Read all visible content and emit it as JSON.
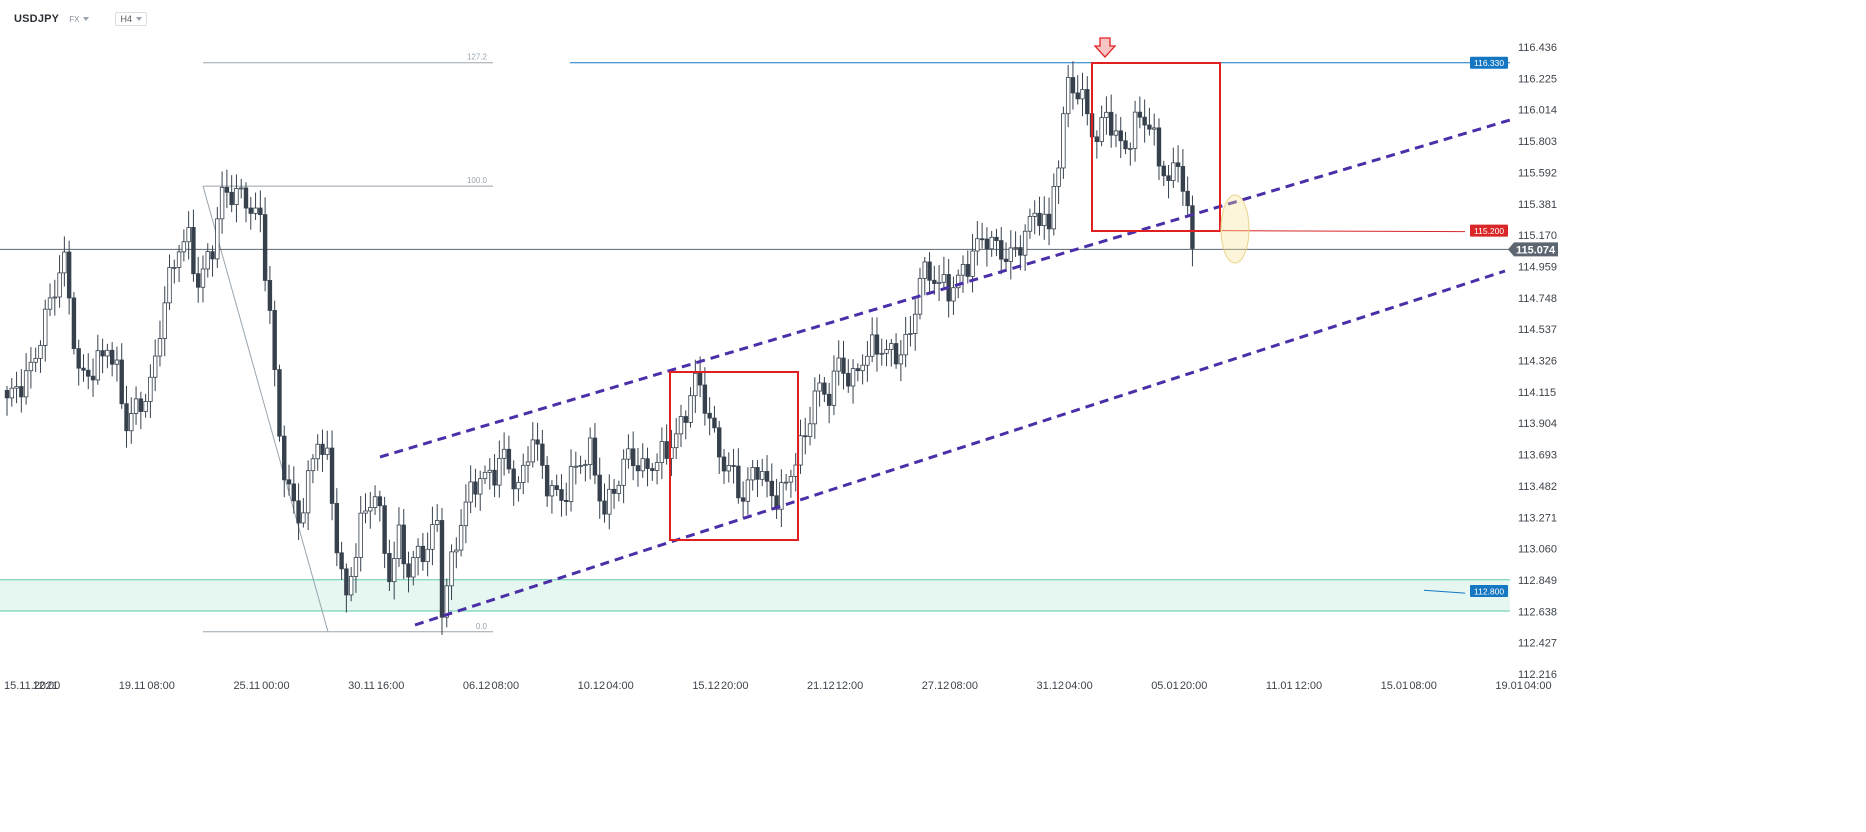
{
  "header": {
    "symbol": "USDJPY",
    "market": "FX",
    "timeframe": "H4"
  },
  "colors": {
    "up": "#ffffff",
    "down": "#36414d",
    "channel": "#4b2fa8",
    "box": "#e02020",
    "resistance": "#1576c2",
    "support_zone": "#e6f7f2",
    "support_line": "#5cc9a7",
    "level_red": "#d92727",
    "current": "#5d6670",
    "fib": "#9aa5ae"
  },
  "chart_data": {
    "type": "candlestick",
    "instrument": "USDJPY",
    "timeframe": "H4",
    "y_ticks": [
      116.436,
      116.225,
      116.014,
      115.803,
      115.592,
      115.381,
      115.17,
      114.959,
      114.748,
      114.537,
      114.326,
      114.115,
      113.904,
      113.693,
      113.482,
      113.271,
      113.06,
      112.849,
      112.638,
      112.427,
      112.216
    ],
    "y_tick_labels": [
      "116.436",
      "116.225",
      "116.014",
      "115.803",
      "115.592",
      "115.381",
      "115.170",
      "114.959",
      "114.748",
      "114.537",
      "114.326",
      "114.115",
      "113.904",
      "113.693",
      "113.482",
      "113.271",
      "113.060",
      "112.849",
      "112.638",
      "112.427",
      "112.216"
    ],
    "x_ticks": [
      {
        "slot": 0,
        "label": "15.11.2021"
      },
      {
        "slot": 6,
        "label": "12:00"
      },
      {
        "slot": 24,
        "label": "19.11"
      },
      {
        "slot": 30,
        "label": "08:00"
      },
      {
        "slot": 48,
        "label": "25.11"
      },
      {
        "slot": 54,
        "label": "00:00"
      },
      {
        "slot": 72,
        "label": "30.11"
      },
      {
        "slot": 78,
        "label": "16:00"
      },
      {
        "slot": 96,
        "label": "06.12"
      },
      {
        "slot": 102,
        "label": "08:00"
      },
      {
        "slot": 120,
        "label": "10.12"
      },
      {
        "slot": 126,
        "label": "04:00"
      },
      {
        "slot": 144,
        "label": "15.12"
      },
      {
        "slot": 150,
        "label": "20:00"
      },
      {
        "slot": 168,
        "label": "21.12"
      },
      {
        "slot": 174,
        "label": "12:00"
      },
      {
        "slot": 192,
        "label": "27.12"
      },
      {
        "slot": 198,
        "label": "08:00"
      },
      {
        "slot": 216,
        "label": "31.12"
      },
      {
        "slot": 222,
        "label": "04:00"
      },
      {
        "slot": 240,
        "label": "05.01"
      },
      {
        "slot": 246,
        "label": "20:00"
      },
      {
        "slot": 264,
        "label": "11.01"
      },
      {
        "slot": 270,
        "label": "12:00"
      },
      {
        "slot": 288,
        "label": "15.01"
      },
      {
        "slot": 294,
        "label": "08:00"
      },
      {
        "slot": 312,
        "label": "19.01"
      },
      {
        "slot": 318,
        "label": "04:00"
      }
    ],
    "key_points": [
      [
        0,
        114.0
      ],
      [
        4,
        114.2
      ],
      [
        9,
        114.75
      ],
      [
        12,
        114.95
      ],
      [
        15,
        114.2
      ],
      [
        19,
        114.35
      ],
      [
        21,
        114.45
      ],
      [
        23,
        114.2
      ],
      [
        25,
        113.85
      ],
      [
        28,
        114.05
      ],
      [
        30,
        114.2
      ],
      [
        33,
        114.75
      ],
      [
        36,
        115.05
      ],
      [
        38,
        115.1
      ],
      [
        40,
        114.85
      ],
      [
        43,
        115.15
      ],
      [
        45,
        115.45
      ],
      [
        48,
        115.4
      ],
      [
        51,
        115.35
      ],
      [
        53,
        115.3
      ],
      [
        55,
        114.7
      ],
      [
        57,
        113.8
      ],
      [
        59,
        113.4
      ],
      [
        61,
        113.2
      ],
      [
        63,
        113.5
      ],
      [
        65,
        113.85
      ],
      [
        67,
        113.7
      ],
      [
        69,
        113.1
      ],
      [
        71,
        112.65
      ],
      [
        72,
        112.85
      ],
      [
        74,
        113.2
      ],
      [
        77,
        113.5
      ],
      [
        80,
        112.9
      ],
      [
        82,
        113.1
      ],
      [
        84,
        112.85
      ],
      [
        86,
        113.0
      ],
      [
        88,
        113.1
      ],
      [
        90,
        113.3
      ],
      [
        91,
        112.7
      ],
      [
        93,
        112.95
      ],
      [
        95,
        113.2
      ],
      [
        98,
        113.5
      ],
      [
        101,
        113.6
      ],
      [
        104,
        113.7
      ],
      [
        107,
        113.4
      ],
      [
        110,
        113.8
      ],
      [
        113,
        113.55
      ],
      [
        116,
        113.4
      ],
      [
        119,
        113.55
      ],
      [
        122,
        113.7
      ],
      [
        125,
        113.35
      ],
      [
        127,
        113.5
      ],
      [
        130,
        113.65
      ],
      [
        133,
        113.55
      ],
      [
        136,
        113.7
      ],
      [
        139,
        113.8
      ],
      [
        141,
        113.85
      ],
      [
        144,
        114.15
      ],
      [
        146,
        114.05
      ],
      [
        149,
        113.75
      ],
      [
        152,
        113.55
      ],
      [
        154,
        113.35
      ],
      [
        157,
        113.6
      ],
      [
        160,
        113.45
      ],
      [
        163,
        113.5
      ],
      [
        165,
        113.65
      ],
      [
        167,
        113.75
      ],
      [
        169,
        114.1
      ],
      [
        172,
        114.15
      ],
      [
        174,
        114.35
      ],
      [
        177,
        114.15
      ],
      [
        180,
        114.35
      ],
      [
        183,
        114.45
      ],
      [
        186,
        114.4
      ],
      [
        189,
        114.45
      ],
      [
        191,
        114.85
      ],
      [
        194,
        114.9
      ],
      [
        197,
        114.85
      ],
      [
        200,
        114.9
      ],
      [
        203,
        115.05
      ],
      [
        205,
        115.15
      ],
      [
        208,
        115.1
      ],
      [
        211,
        115.05
      ],
      [
        213,
        115.15
      ],
      [
        216,
        115.3
      ],
      [
        218,
        115.2
      ],
      [
        219,
        115.55
      ],
      [
        221,
        115.95
      ],
      [
        222,
        116.25
      ],
      [
        224,
        116.1
      ],
      [
        226,
        115.95
      ],
      [
        228,
        115.75
      ],
      [
        230,
        116.05
      ],
      [
        232,
        115.85
      ],
      [
        235,
        115.8
      ],
      [
        237,
        115.95
      ],
      [
        239,
        115.85
      ],
      [
        241,
        115.7
      ],
      [
        243,
        115.55
      ],
      [
        245,
        115.75
      ],
      [
        246,
        115.5
      ],
      [
        247,
        115.3
      ],
      [
        248,
        115.08
      ]
    ]
  },
  "price_levels": {
    "resistance_label": "116.330",
    "level_label": "115.200",
    "current_label": "115.074",
    "support_label": "112.800"
  },
  "fib_labels": {
    "ext": "127.2",
    "top": "100.0",
    "bottom": "0.0"
  }
}
